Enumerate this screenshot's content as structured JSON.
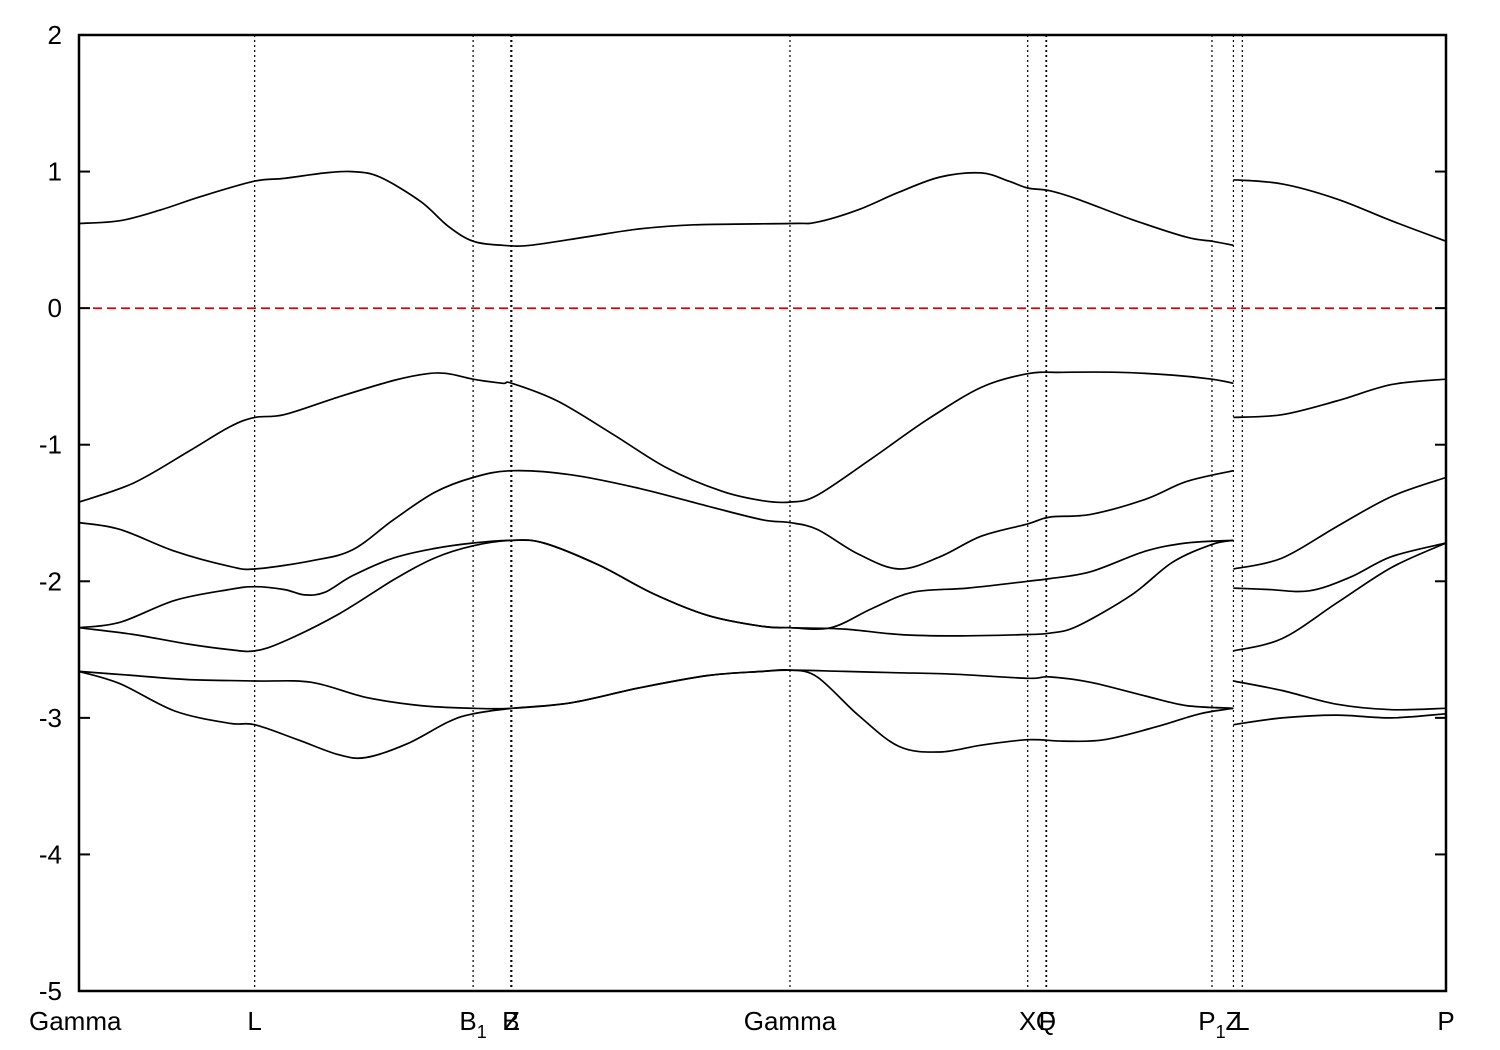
{
  "chart_data": {
    "type": "line",
    "title": "",
    "xlabel": "",
    "ylabel": "",
    "ylim": [
      -5,
      2
    ],
    "xlim": [
      0,
      1
    ],
    "yticks": [
      "2",
      "1",
      "0",
      "-1",
      "-2",
      "-3",
      "-4",
      "-5"
    ],
    "ytick_values": [
      2,
      1,
      0,
      -1,
      -2,
      -3,
      -4,
      -5
    ],
    "grid": false,
    "legend": "none",
    "fermi_level": {
      "y": 0,
      "color": "#e00000",
      "style": "dashed"
    },
    "band_color": "#000000",
    "kpoints": [
      {
        "x": 0.0,
        "label": "Gamma",
        "sub": ""
      },
      {
        "x": 0.1285,
        "label": "L",
        "sub": ""
      },
      {
        "x": 0.2883,
        "label": "B",
        "sub": "1"
      },
      {
        "x": 0.3159,
        "label": "B",
        "sub": ""
      },
      {
        "x": 0.3166,
        "label": "Z",
        "sub": ""
      },
      {
        "x": 0.5201,
        "label": "Gamma",
        "sub": ""
      },
      {
        "x": 0.694,
        "label": "X",
        "sub": ""
      },
      {
        "x": 0.7074,
        "label": "Q",
        "sub": ""
      },
      {
        "x": 0.7078,
        "label": "F",
        "sub": ""
      },
      {
        "x": 0.8288,
        "label": "P",
        "sub": "1"
      },
      {
        "x": 0.8445,
        "label": "Z",
        "sub": ""
      },
      {
        "x": 0.851,
        "label": "L",
        "sub": ""
      },
      {
        "x": 1.0,
        "label": "P",
        "sub": ""
      }
    ],
    "series": [
      {
        "values": [
          [
            0,
            0.62
          ],
          [
            0.03,
            0.64
          ],
          [
            0.06,
            0.72
          ],
          [
            0.09,
            0.82
          ],
          [
            0.1285,
            0.93
          ],
          [
            0.15,
            0.95
          ],
          [
            0.18,
            0.99
          ],
          [
            0.2,
            1.0
          ],
          [
            0.22,
            0.96
          ],
          [
            0.25,
            0.78
          ],
          [
            0.27,
            0.6
          ],
          [
            0.2883,
            0.49
          ],
          [
            0.31,
            0.46
          ],
          [
            0.33,
            0.46
          ],
          [
            0.37,
            0.52
          ],
          [
            0.41,
            0.58
          ],
          [
            0.45,
            0.61
          ],
          [
            0.5201,
            0.62
          ],
          [
            0.54,
            0.63
          ],
          [
            0.57,
            0.72
          ],
          [
            0.6,
            0.85
          ],
          [
            0.63,
            0.96
          ],
          [
            0.66,
            0.99
          ],
          [
            0.68,
            0.93
          ],
          [
            0.694,
            0.88
          ],
          [
            0.71,
            0.86
          ],
          [
            0.73,
            0.8
          ],
          [
            0.77,
            0.65
          ],
          [
            0.81,
            0.52
          ],
          [
            0.8288,
            0.49
          ],
          [
            0.8445,
            0.46
          ]
        ]
      },
      {
        "values": [
          [
            0.8445,
            0.94
          ],
          [
            0.88,
            0.91
          ],
          [
            0.92,
            0.8
          ],
          [
            0.96,
            0.64
          ],
          [
            1.0,
            0.49
          ]
        ]
      },
      {
        "values": [
          [
            0,
            -1.42
          ],
          [
            0.04,
            -1.28
          ],
          [
            0.08,
            -1.05
          ],
          [
            0.11,
            -0.87
          ],
          [
            0.1285,
            -0.8
          ],
          [
            0.15,
            -0.78
          ],
          [
            0.19,
            -0.65
          ],
          [
            0.23,
            -0.53
          ],
          [
            0.255,
            -0.48
          ],
          [
            0.27,
            -0.48
          ],
          [
            0.2883,
            -0.52
          ],
          [
            0.31,
            -0.55
          ],
          [
            0.3166,
            -0.55
          ],
          [
            0.35,
            -0.68
          ],
          [
            0.39,
            -0.92
          ],
          [
            0.43,
            -1.17
          ],
          [
            0.47,
            -1.34
          ],
          [
            0.5,
            -1.41
          ],
          [
            0.5201,
            -1.42
          ],
          [
            0.54,
            -1.37
          ],
          [
            0.58,
            -1.1
          ],
          [
            0.62,
            -0.82
          ],
          [
            0.66,
            -0.58
          ],
          [
            0.694,
            -0.48
          ],
          [
            0.72,
            -0.47
          ],
          [
            0.76,
            -0.47
          ],
          [
            0.8,
            -0.49
          ],
          [
            0.8288,
            -0.52
          ],
          [
            0.8445,
            -0.55
          ]
        ]
      },
      {
        "values": [
          [
            0.8445,
            -0.8
          ],
          [
            0.88,
            -0.78
          ],
          [
            0.92,
            -0.68
          ],
          [
            0.96,
            -0.56
          ],
          [
            1.0,
            -0.52
          ]
        ]
      },
      {
        "values": [
          [
            0,
            -1.57
          ],
          [
            0.03,
            -1.62
          ],
          [
            0.07,
            -1.78
          ],
          [
            0.11,
            -1.89
          ],
          [
            0.1285,
            -1.91
          ],
          [
            0.17,
            -1.85
          ],
          [
            0.2,
            -1.77
          ],
          [
            0.23,
            -1.55
          ],
          [
            0.26,
            -1.35
          ],
          [
            0.2883,
            -1.24
          ],
          [
            0.3166,
            -1.19
          ],
          [
            0.36,
            -1.22
          ],
          [
            0.41,
            -1.32
          ],
          [
            0.46,
            -1.45
          ],
          [
            0.5,
            -1.55
          ],
          [
            0.5201,
            -1.57
          ],
          [
            0.54,
            -1.62
          ],
          [
            0.57,
            -1.8
          ],
          [
            0.6,
            -1.91
          ],
          [
            0.63,
            -1.82
          ],
          [
            0.66,
            -1.67
          ],
          [
            0.694,
            -1.58
          ],
          [
            0.71,
            -1.53
          ],
          [
            0.74,
            -1.51
          ],
          [
            0.78,
            -1.4
          ],
          [
            0.81,
            -1.27
          ],
          [
            0.8445,
            -1.19
          ]
        ]
      },
      {
        "values": [
          [
            0.8445,
            -1.91
          ],
          [
            0.88,
            -1.83
          ],
          [
            0.92,
            -1.6
          ],
          [
            0.96,
            -1.38
          ],
          [
            1.0,
            -1.24
          ]
        ]
      },
      {
        "values": [
          [
            0,
            -2.34
          ],
          [
            0.03,
            -2.3
          ],
          [
            0.07,
            -2.14
          ],
          [
            0.11,
            -2.06
          ],
          [
            0.1285,
            -2.04
          ],
          [
            0.15,
            -2.06
          ],
          [
            0.165,
            -2.1
          ],
          [
            0.18,
            -2.08
          ],
          [
            0.2,
            -1.96
          ],
          [
            0.23,
            -1.83
          ],
          [
            0.26,
            -1.76
          ],
          [
            0.2883,
            -1.72
          ],
          [
            0.3166,
            -1.7
          ],
          [
            0.34,
            -1.72
          ],
          [
            0.38,
            -1.88
          ],
          [
            0.42,
            -2.09
          ],
          [
            0.46,
            -2.25
          ],
          [
            0.5,
            -2.33
          ],
          [
            0.5201,
            -2.34
          ],
          [
            0.55,
            -2.34
          ],
          [
            0.58,
            -2.2
          ],
          [
            0.61,
            -2.08
          ],
          [
            0.65,
            -2.05
          ],
          [
            0.694,
            -2.0
          ],
          [
            0.71,
            -1.98
          ],
          [
            0.74,
            -1.93
          ],
          [
            0.78,
            -1.78
          ],
          [
            0.81,
            -1.72
          ],
          [
            0.8445,
            -1.7
          ]
        ]
      },
      {
        "values": [
          [
            0.8445,
            -2.05
          ],
          [
            0.87,
            -2.06
          ],
          [
            0.9,
            -2.07
          ],
          [
            0.93,
            -1.97
          ],
          [
            0.96,
            -1.82
          ],
          [
            1.0,
            -1.72
          ]
        ]
      },
      {
        "values": [
          [
            0,
            -2.34
          ],
          [
            0.04,
            -2.39
          ],
          [
            0.08,
            -2.46
          ],
          [
            0.11,
            -2.5
          ],
          [
            0.1285,
            -2.51
          ],
          [
            0.15,
            -2.44
          ],
          [
            0.19,
            -2.24
          ],
          [
            0.23,
            -1.99
          ],
          [
            0.26,
            -1.83
          ],
          [
            0.2883,
            -1.74
          ],
          [
            0.3166,
            -1.7
          ],
          [
            0.34,
            -1.72
          ],
          [
            0.38,
            -1.88
          ],
          [
            0.42,
            -2.09
          ],
          [
            0.46,
            -2.25
          ],
          [
            0.5,
            -2.33
          ],
          [
            0.5201,
            -2.34
          ],
          [
            0.56,
            -2.35
          ],
          [
            0.6,
            -2.39
          ],
          [
            0.64,
            -2.4
          ],
          [
            0.694,
            -2.39
          ],
          [
            0.71,
            -2.38
          ],
          [
            0.73,
            -2.33
          ],
          [
            0.77,
            -2.1
          ],
          [
            0.8,
            -1.86
          ],
          [
            0.8288,
            -1.73
          ],
          [
            0.8445,
            -1.7
          ]
        ]
      },
      {
        "values": [
          [
            0.8445,
            -2.51
          ],
          [
            0.88,
            -2.42
          ],
          [
            0.92,
            -2.16
          ],
          [
            0.96,
            -1.9
          ],
          [
            1.0,
            -1.72
          ]
        ]
      },
      {
        "values": [
          [
            0,
            -2.66
          ],
          [
            0.04,
            -2.69
          ],
          [
            0.08,
            -2.72
          ],
          [
            0.1285,
            -2.73
          ],
          [
            0.17,
            -2.74
          ],
          [
            0.21,
            -2.85
          ],
          [
            0.25,
            -2.91
          ],
          [
            0.2883,
            -2.93
          ],
          [
            0.3166,
            -2.93
          ],
          [
            0.36,
            -2.89
          ],
          [
            0.41,
            -2.78
          ],
          [
            0.46,
            -2.69
          ],
          [
            0.5,
            -2.66
          ],
          [
            0.5201,
            -2.65
          ],
          [
            0.56,
            -2.66
          ],
          [
            0.6,
            -2.67
          ],
          [
            0.64,
            -2.68
          ],
          [
            0.694,
            -2.71
          ],
          [
            0.71,
            -2.7
          ],
          [
            0.74,
            -2.74
          ],
          [
            0.78,
            -2.84
          ],
          [
            0.81,
            -2.91
          ],
          [
            0.8445,
            -2.93
          ]
        ]
      },
      {
        "values": [
          [
            0.8445,
            -2.73
          ],
          [
            0.88,
            -2.8
          ],
          [
            0.92,
            -2.9
          ],
          [
            0.96,
            -2.94
          ],
          [
            1.0,
            -2.93
          ]
        ]
      },
      {
        "values": [
          [
            0,
            -2.66
          ],
          [
            0.03,
            -2.75
          ],
          [
            0.07,
            -2.95
          ],
          [
            0.11,
            -3.04
          ],
          [
            0.1285,
            -3.05
          ],
          [
            0.16,
            -3.16
          ],
          [
            0.19,
            -3.27
          ],
          [
            0.21,
            -3.29
          ],
          [
            0.24,
            -3.19
          ],
          [
            0.27,
            -3.03
          ],
          [
            0.2883,
            -2.97
          ],
          [
            0.3166,
            -2.93
          ],
          [
            0.36,
            -2.89
          ],
          [
            0.41,
            -2.78
          ],
          [
            0.46,
            -2.69
          ],
          [
            0.5,
            -2.66
          ],
          [
            0.5201,
            -2.65
          ],
          [
            0.54,
            -2.7
          ],
          [
            0.57,
            -2.98
          ],
          [
            0.6,
            -3.21
          ],
          [
            0.63,
            -3.25
          ],
          [
            0.66,
            -3.2
          ],
          [
            0.694,
            -3.16
          ],
          [
            0.72,
            -3.17
          ],
          [
            0.75,
            -3.16
          ],
          [
            0.79,
            -3.06
          ],
          [
            0.82,
            -2.97
          ],
          [
            0.8445,
            -2.93
          ]
        ]
      },
      {
        "values": [
          [
            0.8445,
            -3.05
          ],
          [
            0.88,
            -3.0
          ],
          [
            0.92,
            -2.98
          ],
          [
            0.96,
            -3.0
          ],
          [
            1.0,
            -2.97
          ]
        ]
      }
    ]
  }
}
